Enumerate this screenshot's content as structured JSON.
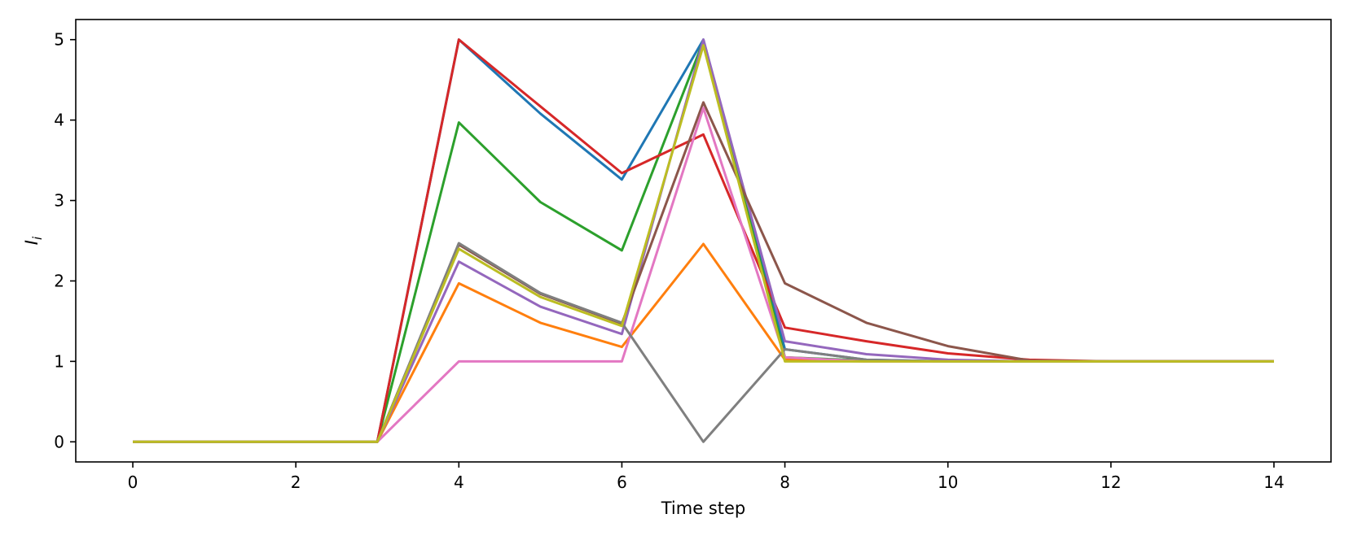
{
  "chart_data": {
    "type": "line",
    "title": "",
    "xlabel": "Time step",
    "ylabel_main": "I",
    "ylabel_sub": "i",
    "xlim": [
      -0.7,
      14.7
    ],
    "ylim": [
      -0.25,
      5.25
    ],
    "xticks": [
      0,
      2,
      4,
      6,
      8,
      10,
      12,
      14
    ],
    "yticks": [
      0,
      1,
      2,
      3,
      4,
      5
    ],
    "grid": false,
    "legend": "none",
    "x": [
      0,
      1,
      2,
      3,
      4,
      5,
      6,
      7,
      8,
      9,
      10,
      11,
      12,
      13,
      14
    ],
    "series": [
      {
        "color": "#1f77b4",
        "values": [
          0,
          0,
          0,
          0,
          5.0,
          4.08,
          3.26,
          5.0,
          1.15,
          1.02,
          1.0,
          1.0,
          1.0,
          1.0,
          1.0
        ]
      },
      {
        "color": "#ff7f0e",
        "values": [
          0,
          0,
          0,
          0,
          1.97,
          1.48,
          1.18,
          2.46,
          1.02,
          1.0,
          1.0,
          1.0,
          1.0,
          1.0,
          1.0
        ]
      },
      {
        "color": "#2ca02c",
        "values": [
          0,
          0,
          0,
          0,
          3.97,
          2.98,
          2.38,
          4.98,
          1.05,
          1.01,
          1.0,
          1.0,
          1.0,
          1.0,
          1.0
        ]
      },
      {
        "color": "#d62728",
        "values": [
          0,
          0,
          0,
          0,
          5.0,
          4.17,
          3.34,
          3.82,
          1.42,
          1.25,
          1.1,
          1.02,
          1.0,
          1.0,
          1.0
        ]
      },
      {
        "color": "#9467bd",
        "values": [
          0,
          0,
          0,
          0,
          2.24,
          1.68,
          1.34,
          5.0,
          1.25,
          1.09,
          1.02,
          1.0,
          1.0,
          1.0,
          1.0
        ]
      },
      {
        "color": "#8c564b",
        "values": [
          0,
          0,
          0,
          0,
          2.45,
          1.84,
          1.47,
          4.22,
          1.97,
          1.48,
          1.19,
          1.01,
          1.0,
          1.0,
          1.0
        ]
      },
      {
        "color": "#e377c2",
        "values": [
          0,
          0,
          0,
          0,
          1.0,
          1.0,
          1.0,
          4.15,
          1.05,
          1.0,
          1.0,
          1.0,
          1.0,
          1.0,
          1.0
        ]
      },
      {
        "color": "#7f7f7f",
        "values": [
          0,
          0,
          0,
          0,
          2.47,
          1.85,
          1.48,
          0.0,
          1.15,
          1.02,
          1.0,
          1.0,
          1.0,
          1.0,
          1.0
        ]
      },
      {
        "color": "#bcbd22",
        "values": [
          0,
          0,
          0,
          0,
          2.4,
          1.8,
          1.44,
          4.93,
          1.0,
          1.0,
          1.0,
          1.0,
          1.0,
          1.0,
          1.0
        ]
      }
    ]
  }
}
